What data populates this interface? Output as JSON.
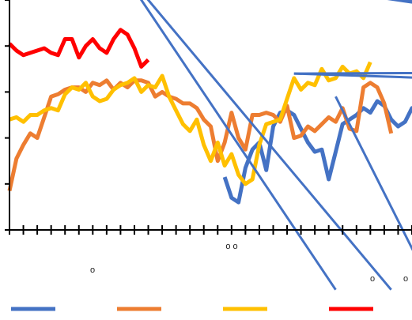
{
  "chart_data": {
    "type": "line",
    "title": "",
    "xlabel": "",
    "ylabel": "",
    "ylim": [
      0,
      100
    ],
    "grid": false,
    "legend_position": "bottom",
    "x_ticks": 30,
    "x_tick_labels": [
      "o o",
      "o",
      "o",
      "o"
    ],
    "series": [
      {
        "color": "#4472C4",
        "start": 31,
        "values": [
          23,
          14,
          12,
          27,
          35,
          38,
          26,
          45,
          51,
          52,
          50,
          44,
          38,
          34,
          35,
          22,
          34,
          46,
          48,
          50,
          53,
          51,
          56,
          54,
          48,
          45,
          47,
          53,
          49,
          48,
          44,
          23
        ]
      },
      {
        "color": "#ED7D31",
        "start": 0,
        "values": [
          17,
          31,
          37,
          42,
          40,
          49,
          58,
          59,
          61,
          62,
          62,
          60,
          64,
          63,
          65,
          61,
          64,
          62,
          65,
          65,
          64,
          58,
          60,
          58,
          57,
          55,
          55,
          53,
          48,
          45,
          30,
          38,
          51,
          40,
          35,
          50,
          50,
          51,
          50,
          47,
          54,
          40,
          41,
          45,
          43,
          46,
          49,
          47,
          53,
          44,
          43,
          62,
          64,
          62,
          55,
          42
        ]
      },
      {
        "color": "#FFC000",
        "start": 0,
        "values": [
          48,
          49,
          47,
          50,
          50,
          52,
          53,
          52,
          59,
          62,
          61,
          64,
          58,
          56,
          57,
          61,
          63,
          64,
          66,
          60,
          63,
          62,
          67,
          58,
          52,
          46,
          43,
          48,
          37,
          30,
          38,
          28,
          33,
          24,
          20,
          22,
          37,
          46,
          47,
          48,
          57,
          66,
          61,
          64,
          63,
          70,
          65,
          66,
          71,
          68,
          69,
          66,
          73
        ]
      },
      {
        "color": "#FF0000",
        "start": 0,
        "values": [
          81,
          78,
          76,
          77,
          78,
          79,
          77,
          76,
          83,
          83,
          75,
          80,
          83,
          79,
          77,
          83,
          87,
          85,
          79,
          71,
          74
        ]
      }
    ],
    "extra_lines": [
      {
        "color": "#4472C4",
        "x1": 15,
        "y1": 118,
        "x2": 55,
        "y2": -26
      },
      {
        "color": "#4472C4",
        "x1": 15,
        "y1": 118,
        "x2": 47,
        "y2": -26
      },
      {
        "color": "#4472C4",
        "x1": 15,
        "y1": 118,
        "x2": 121,
        "y2": 73
      },
      {
        "color": "#4472C4",
        "x1": 15,
        "y1": 118,
        "x2": 121,
        "y2": 71
      },
      {
        "color": "#4472C4",
        "x1": 41,
        "y1": 68,
        "x2": 121,
        "y2": 69
      },
      {
        "color": "#4472C4",
        "x1": 41,
        "y1": 68,
        "x2": 121,
        "y2": 60
      },
      {
        "color": "#4472C4",
        "x1": 47,
        "y1": 58,
        "x2": 61,
        "y2": -26
      },
      {
        "color": "#4472C4",
        "x1": 110,
        "y1": -26,
        "x2": 121,
        "y2": -16
      }
    ]
  }
}
